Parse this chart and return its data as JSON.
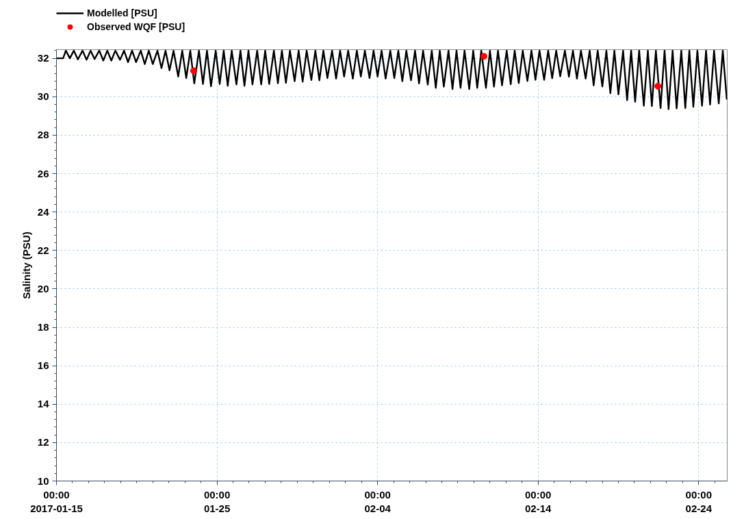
{
  "chart_data": {
    "type": "line",
    "ylabel": "Salinity (PSU)",
    "xlim": [
      "2017-01-15T00:00",
      "2017-02-25T18:40"
    ],
    "xticks": [
      {
        "value": "2017-01-15T00:00",
        "label": "00:00\n2017-01-15"
      },
      {
        "value": "2017-01-25T00:00",
        "label": "00:00\n01-25"
      },
      {
        "value": "2017-02-04T00:00",
        "label": "00:00\n02-04"
      },
      {
        "value": "2017-02-14T00:00",
        "label": "00:00\n02-14"
      },
      {
        "value": "2017-02-24T00:00",
        "label": "00:00\n02-24"
      }
    ],
    "ylim": [
      10,
      32.45
    ],
    "yticks": [
      10,
      12,
      14,
      16,
      18,
      20,
      22,
      24,
      26,
      28,
      30,
      32
    ],
    "grid": true,
    "legend": "top left",
    "series": [
      {
        "name": "Modelled [PSU]",
        "color": "#000000",
        "x": [
          "2017-01-15T00:00",
          "2017-01-15T10:00",
          "2017-01-15T14:00",
          "2017-01-15T20:00",
          "2017-01-16T02:00",
          "2017-01-16T08:00",
          "2017-01-16T15:00",
          "2017-01-16T21:00",
          "2017-01-17T03:00",
          "2017-01-17T09:00",
          "2017-01-17T16:00",
          "2017-01-17T22:00",
          "2017-01-18T04:00",
          "2017-01-18T10:00",
          "2017-01-18T16:00",
          "2017-01-18T23:00",
          "2017-01-19T05:00",
          "2017-01-19T11:00",
          "2017-01-19T17:00",
          "2017-01-19T23:00",
          "2017-01-20T06:00",
          "2017-01-20T12:00",
          "2017-01-20T18:00",
          "2017-01-21T00:00",
          "2017-01-21T07:00",
          "2017-01-21T13:00",
          "2017-01-21T19:00",
          "2017-01-22T01:00",
          "2017-01-22T07:00",
          "2017-01-22T14:00",
          "2017-01-22T20:00",
          "2017-01-23T02:00",
          "2017-01-23T08:00",
          "2017-01-23T14:00",
          "2017-01-23T21:00",
          "2017-01-24T03:00",
          "2017-01-24T09:00",
          "2017-01-24T15:00",
          "2017-01-24T22:00",
          "2017-01-25T04:00",
          "2017-01-25T10:00",
          "2017-01-25T16:00",
          "2017-01-25T22:00",
          "2017-01-26T05:00",
          "2017-01-26T11:00",
          "2017-01-26T17:00",
          "2017-01-26T23:00",
          "2017-01-27T05:00",
          "2017-01-27T12:00",
          "2017-01-27T18:00",
          "2017-01-28T00:00",
          "2017-01-28T06:00",
          "2017-01-28T13:00",
          "2017-01-28T19:00",
          "2017-01-29T01:00",
          "2017-01-29T07:00",
          "2017-01-29T13:00",
          "2017-01-29T20:00",
          "2017-01-30T02:00",
          "2017-01-30T08:00",
          "2017-01-30T14:00",
          "2017-01-30T21:00",
          "2017-01-31T03:00",
          "2017-01-31T09:00",
          "2017-01-31T15:00",
          "2017-01-31T21:00",
          "2017-02-01T04:00",
          "2017-02-01T10:00",
          "2017-02-01T16:00",
          "2017-02-01T22:00",
          "2017-02-02T04:00",
          "2017-02-02T11:00",
          "2017-02-02T17:00",
          "2017-02-02T23:00",
          "2017-02-03T05:00",
          "2017-02-03T12:00",
          "2017-02-03T18:00",
          "2017-02-04T00:00",
          "2017-02-04T06:00",
          "2017-02-04T12:00",
          "2017-02-04T19:00",
          "2017-02-05T01:00",
          "2017-02-05T07:00",
          "2017-02-05T13:00",
          "2017-02-05T19:00",
          "2017-02-06T02:00",
          "2017-02-06T08:00",
          "2017-02-06T14:00",
          "2017-02-06T20:00",
          "2017-02-07T03:00",
          "2017-02-07T09:00",
          "2017-02-07T15:00",
          "2017-02-07T21:00",
          "2017-02-08T03:00",
          "2017-02-08T10:00",
          "2017-02-08T16:00",
          "2017-02-08T22:00",
          "2017-02-09T04:00",
          "2017-02-09T10:00",
          "2017-02-09T17:00",
          "2017-02-09T23:00",
          "2017-02-10T05:00",
          "2017-02-10T11:00",
          "2017-02-10T18:00",
          "2017-02-11T00:00",
          "2017-02-11T06:00",
          "2017-02-11T12:00",
          "2017-02-11T18:00",
          "2017-02-12T01:00",
          "2017-02-12T07:00",
          "2017-02-12T13:00",
          "2017-02-12T19:00",
          "2017-02-13T01:00",
          "2017-02-13T08:00",
          "2017-02-13T14:00",
          "2017-02-13T20:00",
          "2017-02-14T02:00",
          "2017-02-14T09:00",
          "2017-02-14T15:00",
          "2017-02-14T21:00",
          "2017-02-15T03:00",
          "2017-02-15T09:00",
          "2017-02-15T16:00",
          "2017-02-15T22:00",
          "2017-02-16T04:00",
          "2017-02-16T10:00",
          "2017-02-16T16:00",
          "2017-02-16T23:00",
          "2017-02-17T05:00",
          "2017-02-17T11:00",
          "2017-02-17T17:00",
          "2017-02-18T00:00",
          "2017-02-18T06:00",
          "2017-02-18T12:00",
          "2017-02-18T18:00",
          "2017-02-19T00:00",
          "2017-02-19T07:00",
          "2017-02-19T13:00",
          "2017-02-19T19:00",
          "2017-02-20T01:00",
          "2017-02-20T07:00",
          "2017-02-20T14:00",
          "2017-02-20T20:00",
          "2017-02-21T02:00",
          "2017-02-21T08:00",
          "2017-02-21T15:00",
          "2017-02-21T21:00",
          "2017-02-22T03:00",
          "2017-02-22T09:00",
          "2017-02-22T15:00",
          "2017-02-22T22:00",
          "2017-02-23T04:00",
          "2017-02-23T10:00",
          "2017-02-23T16:00",
          "2017-02-23T22:00",
          "2017-02-24T05:00",
          "2017-02-24T11:00",
          "2017-02-24T17:00",
          "2017-02-24T23:00",
          "2017-02-25T06:00",
          "2017-02-25T12:00",
          "2017-02-25T18:00"
        ],
        "values": [
          32.0,
          32.0,
          32.4,
          32.0,
          32.4,
          31.94,
          32.4,
          31.92,
          32.4,
          31.96,
          32.4,
          31.88,
          32.4,
          31.88,
          32.4,
          31.92,
          32.4,
          31.8,
          32.4,
          31.8,
          32.4,
          31.7,
          32.4,
          31.7,
          32.4,
          31.49,
          32.4,
          31.37,
          32.4,
          31.05,
          32.4,
          30.97,
          32.4,
          30.69,
          32.4,
          30.66,
          32.4,
          30.54,
          32.4,
          30.66,
          32.4,
          30.57,
          32.4,
          30.64,
          32.4,
          30.57,
          32.4,
          30.64,
          32.4,
          30.64,
          32.4,
          30.66,
          32.4,
          30.7,
          32.4,
          30.72,
          32.4,
          30.81,
          32.4,
          30.78,
          32.4,
          30.87,
          32.4,
          30.85,
          32.4,
          30.97,
          32.4,
          30.94,
          32.4,
          31.05,
          32.4,
          30.94,
          32.4,
          31.05,
          32.4,
          30.97,
          32.4,
          31.05,
          32.4,
          30.94,
          32.4,
          30.97,
          32.4,
          30.81,
          32.4,
          30.85,
          32.4,
          30.69,
          32.4,
          30.63,
          32.4,
          30.46,
          32.4,
          30.52,
          32.4,
          30.4,
          32.4,
          30.46,
          32.4,
          30.4,
          32.4,
          30.46,
          32.4,
          30.46,
          32.4,
          30.52,
          32.4,
          30.59,
          32.4,
          30.65,
          32.4,
          30.71,
          32.4,
          30.82,
          32.4,
          30.88,
          32.4,
          30.88,
          32.4,
          30.96,
          32.4,
          31.06,
          32.4,
          31.04,
          32.4,
          30.94,
          32.4,
          30.94,
          32.4,
          30.59,
          32.4,
          30.53,
          32.4,
          30.18,
          32.4,
          30.12,
          32.4,
          29.82,
          32.4,
          29.74,
          32.4,
          29.53,
          32.4,
          29.51,
          32.4,
          29.41,
          32.4,
          29.35,
          32.4,
          29.39,
          32.4,
          29.41,
          32.4,
          29.47,
          32.4,
          29.53,
          32.4,
          29.59,
          32.4,
          29.65,
          32.4,
          29.85
        ]
      },
      {
        "name": "Observed WQF [PSU]",
        "type": "scatter",
        "color": "#ff0000",
        "marker": "circle",
        "x": [
          "2017-01-23T13:00",
          "2017-02-10T15:00",
          "2017-02-21T11:00"
        ],
        "values": [
          31.35,
          32.1,
          30.55
        ]
      }
    ]
  }
}
